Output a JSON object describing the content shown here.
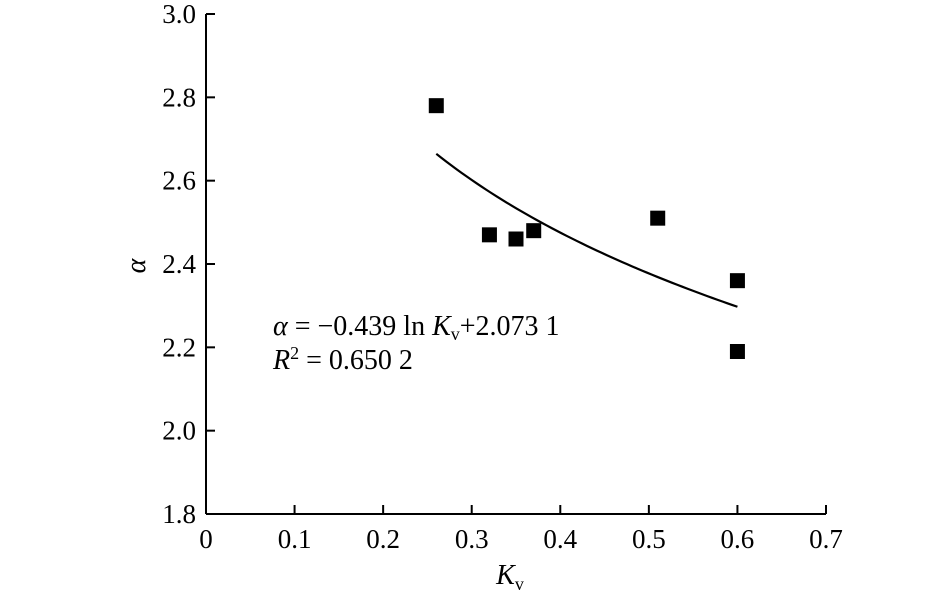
{
  "chart_data": {
    "type": "scatter",
    "xlabel_main": "K",
    "xlabel_sub": "v",
    "ylabel": "α",
    "xlim": [
      0,
      0.7
    ],
    "ylim": [
      1.8,
      3.0
    ],
    "xticks": [
      "0",
      "0.1",
      "0.2",
      "0.3",
      "0.4",
      "0.5",
      "0.6",
      "0.7"
    ],
    "yticks": [
      "1.8",
      "2.0",
      "2.2",
      "2.4",
      "2.6",
      "2.8",
      "3.0"
    ],
    "grid": false,
    "points": [
      {
        "x": 0.26,
        "y": 2.78
      },
      {
        "x": 0.32,
        "y": 2.47
      },
      {
        "x": 0.35,
        "y": 2.46
      },
      {
        "x": 0.37,
        "y": 2.48
      },
      {
        "x": 0.51,
        "y": 2.51
      },
      {
        "x": 0.6,
        "y": 2.36
      },
      {
        "x": 0.6,
        "y": 2.19
      }
    ],
    "fit": {
      "type": "logarithmic",
      "a": -0.439,
      "b": 2.0731,
      "x_range": [
        0.26,
        0.6
      ]
    },
    "annotation": {
      "eq_alpha": "α",
      "eq_part1": " = −0.439 ln ",
      "eq_K": "K",
      "eq_sub": "v",
      "eq_part2": "+2.073 1",
      "r2_R": "R",
      "r2_sup": "2",
      "r2_value": " = 0.650 2"
    }
  }
}
